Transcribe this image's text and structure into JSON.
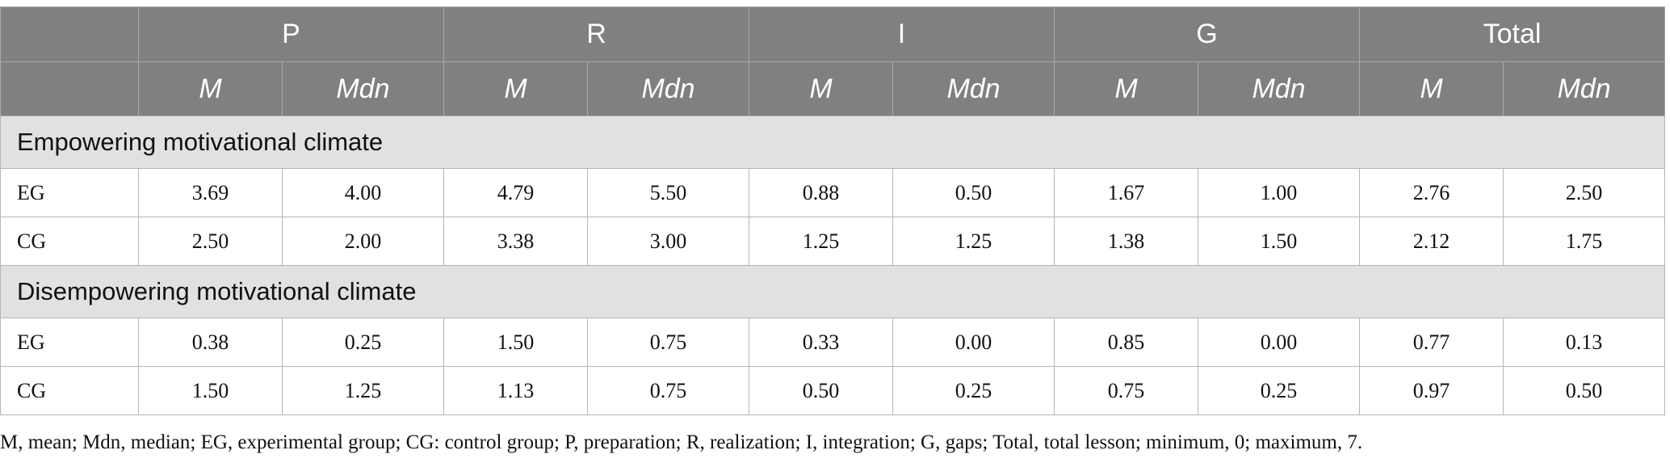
{
  "header": {
    "groups": [
      "P",
      "R",
      "I",
      "G",
      "Total"
    ],
    "sub": [
      "M",
      "Mdn"
    ]
  },
  "sections": [
    {
      "title": "Empowering motivational climate",
      "rows": [
        {
          "label": "EG",
          "values": [
            "3.69",
            "4.00",
            "4.79",
            "5.50",
            "0.88",
            "0.50",
            "1.67",
            "1.00",
            "2.76",
            "2.50"
          ]
        },
        {
          "label": "CG",
          "values": [
            "2.50",
            "2.00",
            "3.38",
            "3.00",
            "1.25",
            "1.25",
            "1.38",
            "1.50",
            "2.12",
            "1.75"
          ]
        }
      ]
    },
    {
      "title": "Disempowering motivational climate",
      "rows": [
        {
          "label": "EG",
          "values": [
            "0.38",
            "0.25",
            "1.50",
            "0.75",
            "0.33",
            "0.00",
            "0.85",
            "0.00",
            "0.77",
            "0.13"
          ]
        },
        {
          "label": "CG",
          "values": [
            "1.50",
            "1.25",
            "1.13",
            "0.75",
            "0.50",
            "0.25",
            "0.75",
            "0.25",
            "0.97",
            "0.50"
          ]
        }
      ]
    }
  ],
  "note": "M, mean; Mdn, median; EG, experimental group; CG: control group; P, preparation; R, realization; I, integration; G, gaps; Total, total lesson; minimum, 0; maximum, 7."
}
